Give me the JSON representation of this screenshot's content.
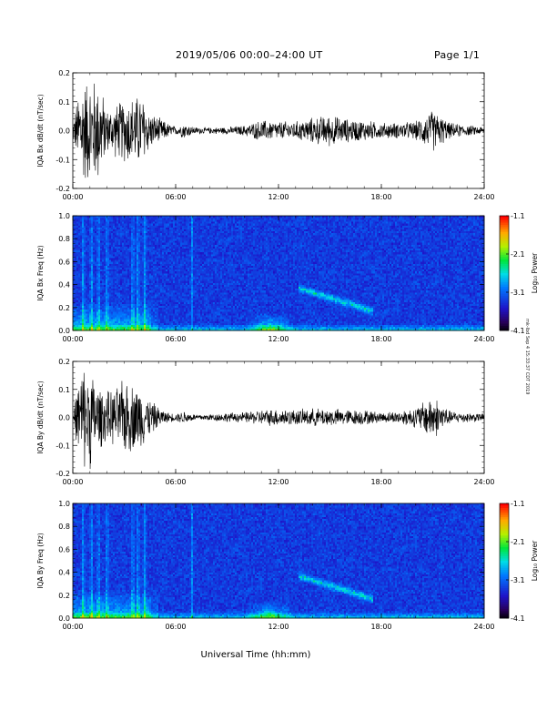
{
  "header": {
    "title": "2019/05/06  00:00–24:00 UT",
    "page": "Page 1/1"
  },
  "side_note": "mk-lbd Sep 4 15:33:37 CDT 2019",
  "chart_data": [
    {
      "type": "line",
      "ylabel": "IQA Bx dB/dt (nT/sec)",
      "xlim": [
        0,
        24
      ],
      "ylim": [
        -0.2,
        0.2
      ],
      "x_ticks": [
        "00:00",
        "06:00",
        "12:00",
        "18:00",
        "24:00"
      ],
      "y_ticks": [
        "-0.2",
        "-0.1",
        "0.0",
        "0.1",
        "0.2"
      ],
      "color": "#000000",
      "envelope": {
        "x": [
          0,
          0.5,
          1.0,
          1.5,
          2.0,
          2.5,
          3.0,
          3.5,
          4.0,
          4.5,
          5.0,
          5.5,
          6.0,
          6.5,
          7.0,
          7.5,
          8.0,
          9.0,
          10.0,
          11.0,
          12.0,
          13.0,
          14.0,
          15.0,
          16.0,
          17.0,
          18.0,
          19.0,
          20.0,
          21.0,
          22.0,
          23.0,
          24.0
        ],
        "amplitude": [
          0.03,
          0.2,
          0.2,
          0.2,
          0.08,
          0.1,
          0.12,
          0.13,
          0.14,
          0.07,
          0.05,
          0.03,
          0.015,
          0.03,
          0.015,
          0.012,
          0.012,
          0.014,
          0.02,
          0.04,
          0.035,
          0.035,
          0.05,
          0.06,
          0.045,
          0.04,
          0.03,
          0.03,
          0.035,
          0.08,
          0.03,
          0.02,
          0.015
        ]
      }
    },
    {
      "type": "heatmap",
      "ylabel": "IQA Bx Freq (Hz)",
      "xlim": [
        0,
        24
      ],
      "ylim": [
        0,
        1.0
      ],
      "x_ticks": [
        "00:00",
        "06:00",
        "12:00",
        "18:00",
        "24:00"
      ],
      "y_ticks": [
        "0.0",
        "0.2",
        "0.4",
        "0.6",
        "0.8",
        "1.0"
      ],
      "colorbar": {
        "label": "Log₁₀ Power",
        "ticks": [
          "-1.1",
          "-2.1",
          "-3.1",
          "-4.1"
        ],
        "range": [
          -4.1,
          -1.1
        ]
      },
      "features": [
        {
          "name": "broadband bursts",
          "times": [
            0.6,
            1.1,
            1.5,
            2.0,
            3.5,
            3.8,
            4.2
          ],
          "max_freq": 1.0
        },
        {
          "name": "low-frequency band",
          "time_range": [
            0,
            24
          ],
          "freq_range": [
            0,
            0.05
          ]
        },
        {
          "name": "enhancement",
          "time_range": [
            10.0,
            13.0
          ],
          "freq_range": [
            0,
            0.12
          ]
        },
        {
          "name": "banded emission",
          "time_range": [
            13.2,
            17.5
          ],
          "freq_range": [
            0.2,
            0.4
          ]
        }
      ]
    },
    {
      "type": "line",
      "ylabel": "IQA By dB/dt (nT/sec)",
      "xlim": [
        0,
        24
      ],
      "ylim": [
        -0.2,
        0.2
      ],
      "x_ticks": [
        "00:00",
        "06:00",
        "12:00",
        "18:00",
        "24:00"
      ],
      "y_ticks": [
        "-0.2",
        "-0.1",
        "0.0",
        "0.1",
        "0.2"
      ],
      "color": "#000000",
      "envelope": {
        "x": [
          0,
          0.5,
          1.0,
          1.5,
          2.0,
          2.5,
          3.0,
          3.5,
          4.0,
          4.5,
          5.0,
          5.5,
          6.0,
          6.5,
          7.0,
          7.5,
          8.0,
          9.0,
          10.0,
          11.0,
          12.0,
          13.0,
          14.0,
          15.0,
          16.0,
          17.0,
          18.0,
          19.0,
          20.0,
          21.0,
          22.0,
          23.0,
          24.0
        ],
        "amplitude": [
          0.02,
          0.2,
          0.2,
          0.12,
          0.1,
          0.11,
          0.15,
          0.13,
          0.12,
          0.07,
          0.04,
          0.02,
          0.015,
          0.025,
          0.014,
          0.012,
          0.014,
          0.018,
          0.02,
          0.03,
          0.035,
          0.03,
          0.035,
          0.035,
          0.03,
          0.03,
          0.02,
          0.025,
          0.04,
          0.09,
          0.025,
          0.02,
          0.015
        ]
      }
    },
    {
      "type": "heatmap",
      "ylabel": "IQA By Freq (Hz)",
      "xlim": [
        0,
        24
      ],
      "ylim": [
        0,
        1.0
      ],
      "x_ticks": [
        "00:00",
        "06:00",
        "12:00",
        "18:00",
        "24:00"
      ],
      "y_ticks": [
        "0.0",
        "0.2",
        "0.4",
        "0.6",
        "0.8",
        "1.0"
      ],
      "colorbar": {
        "label": "Log₁₀ Power",
        "ticks": [
          "-1.1",
          "-2.1",
          "-3.1",
          "-4.1"
        ],
        "range": [
          -4.1,
          -1.1
        ]
      },
      "features": [
        {
          "name": "broadband bursts",
          "times": [
            0.6,
            1.1,
            1.5,
            2.0,
            3.5,
            3.8,
            4.2
          ],
          "max_freq": 1.0
        },
        {
          "name": "low-frequency band",
          "time_range": [
            0,
            24
          ],
          "freq_range": [
            0,
            0.05
          ]
        },
        {
          "name": "enhancement",
          "time_range": [
            10.0,
            13.0
          ],
          "freq_range": [
            0,
            0.12
          ]
        },
        {
          "name": "banded emission",
          "time_range": [
            13.2,
            17.5
          ],
          "freq_range": [
            0.2,
            0.4
          ]
        }
      ]
    }
  ],
  "xlabel": "Universal Time (hh:mm)"
}
